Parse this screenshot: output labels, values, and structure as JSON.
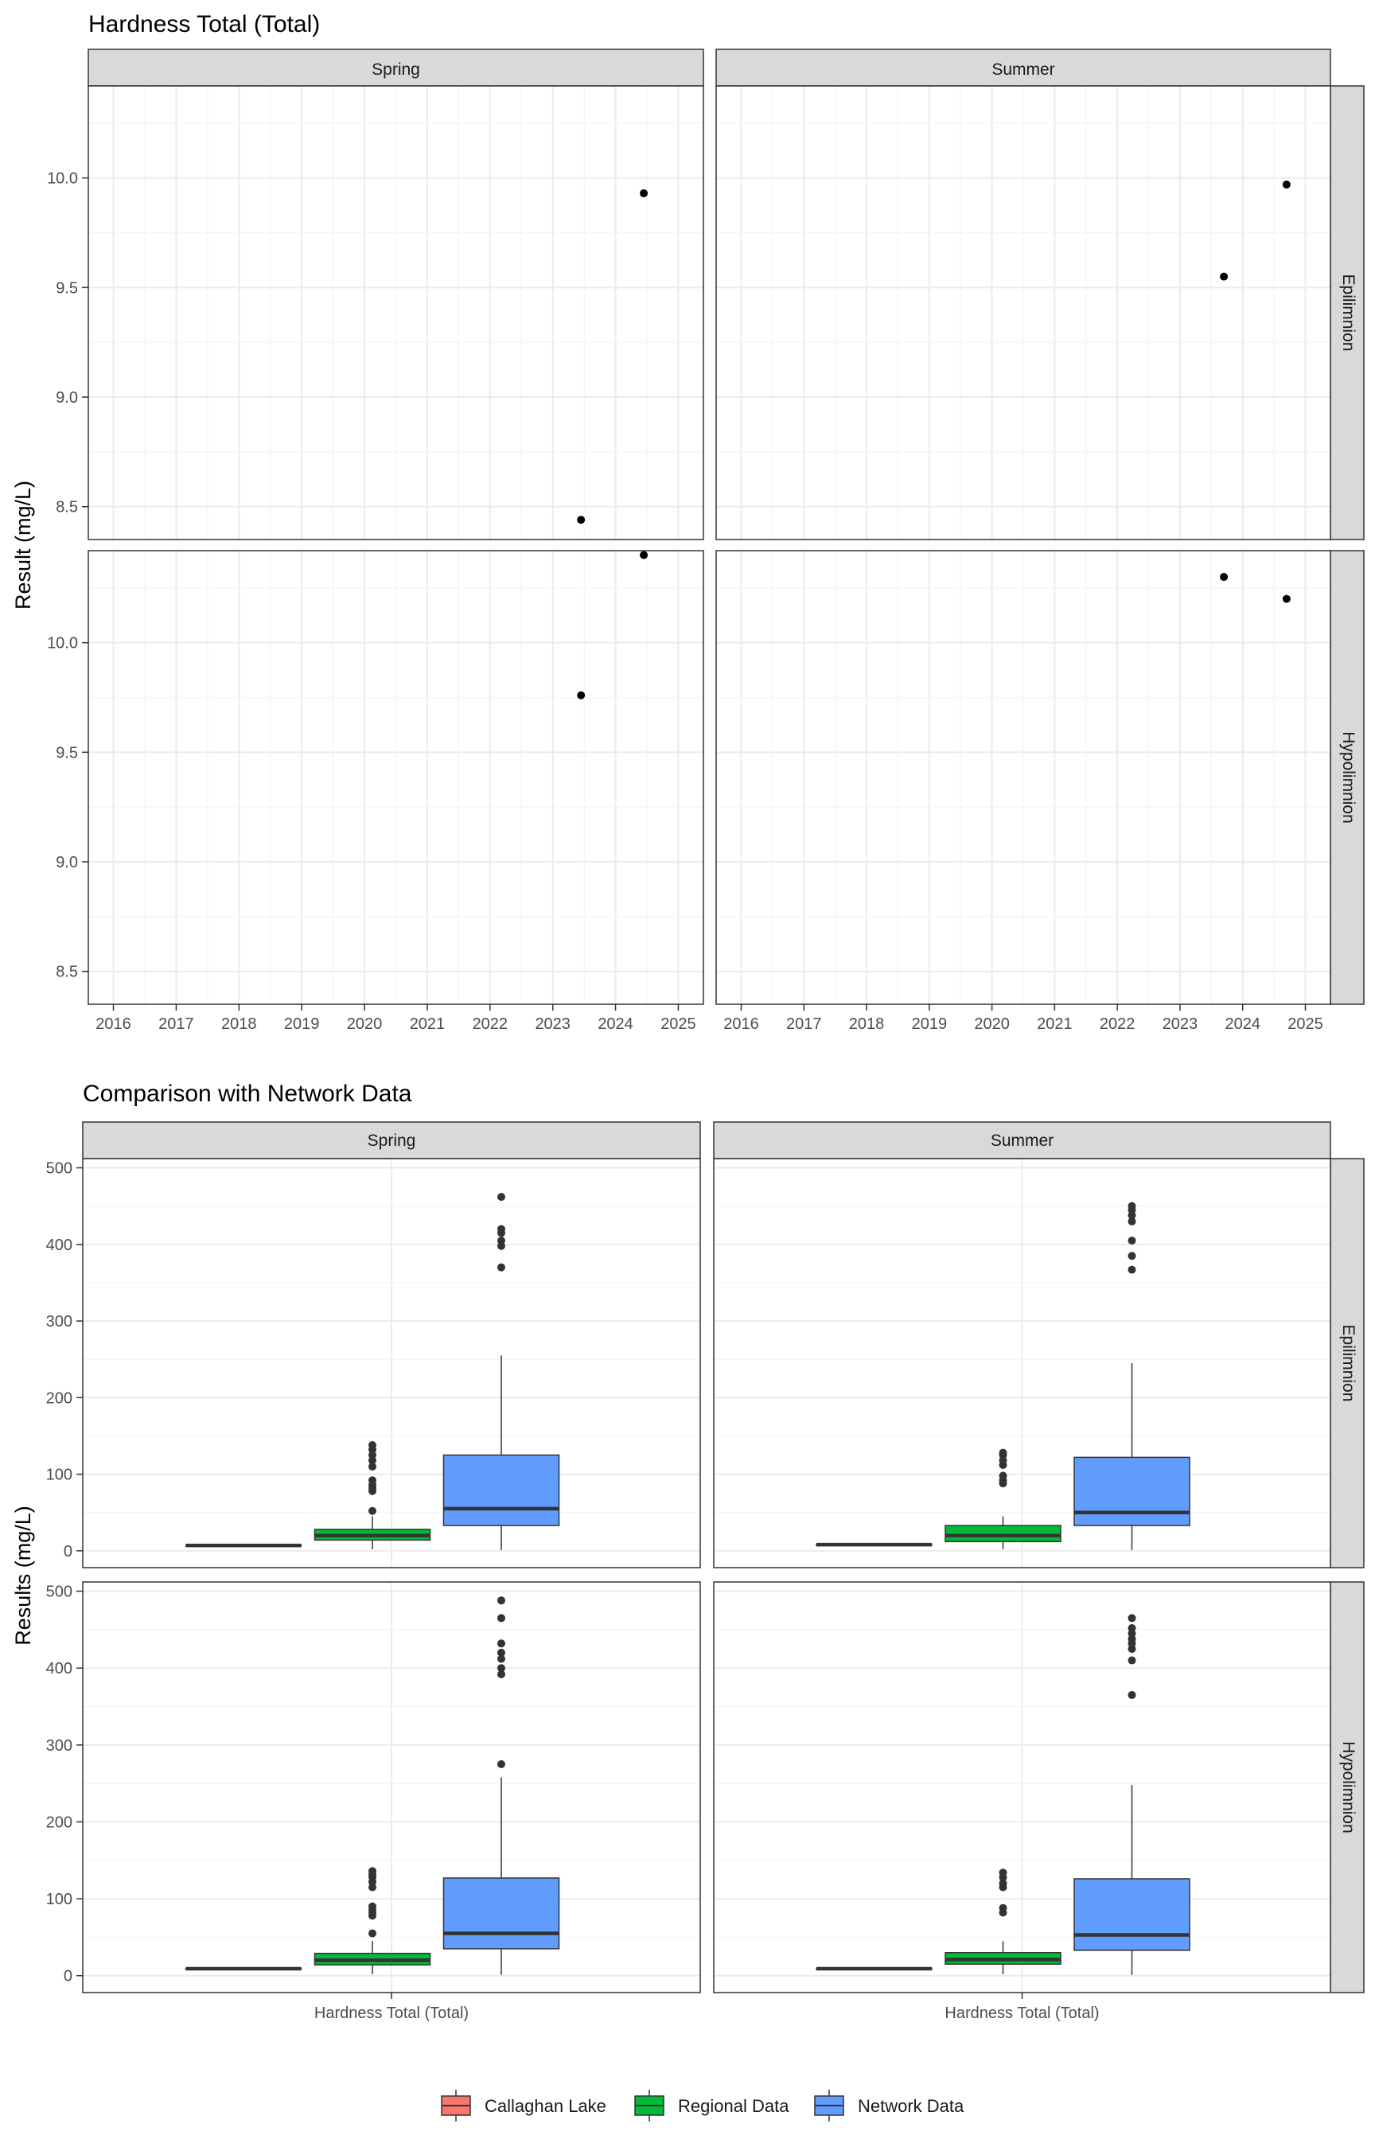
{
  "chart_data": [
    {
      "type": "scatter",
      "title": "Hardness Total (Total)",
      "ylabel": "Result (mg/L)",
      "facet_cols": [
        "Spring",
        "Summer"
      ],
      "facet_rows": [
        "Epilimnion",
        "Hypolimnion"
      ],
      "x_ticks": [
        "2016",
        "2017",
        "2018",
        "2019",
        "2020",
        "2021",
        "2022",
        "2023",
        "2024",
        "2025"
      ],
      "xlim": [
        2015.6,
        2025.4
      ],
      "y_ticks": [
        "8.5",
        "9.0",
        "9.5",
        "10.0"
      ],
      "ylim": [
        8.35,
        10.42
      ],
      "grid": true,
      "point_color": "#000000",
      "panels": [
        {
          "col": "Spring",
          "row": "Epilimnion",
          "points": [
            {
              "x": 2023.45,
              "y": 8.44
            },
            {
              "x": 2024.45,
              "y": 9.93
            }
          ]
        },
        {
          "col": "Summer",
          "row": "Epilimnion",
          "points": [
            {
              "x": 2023.7,
              "y": 9.55
            },
            {
              "x": 2024.7,
              "y": 9.97
            }
          ]
        },
        {
          "col": "Spring",
          "row": "Hypolimnion",
          "points": [
            {
              "x": 2023.45,
              "y": 9.76
            },
            {
              "x": 2024.45,
              "y": 10.4
            }
          ]
        },
        {
          "col": "Summer",
          "row": "Hypolimnion",
          "points": [
            {
              "x": 2023.7,
              "y": 10.3
            },
            {
              "x": 2024.7,
              "y": 10.2
            }
          ]
        }
      ]
    },
    {
      "type": "box",
      "title": "Comparison with Network Data",
      "ylabel": "Results (mg/L)",
      "xlabel_category": "Hardness Total (Total)",
      "facet_cols": [
        "Spring",
        "Summer"
      ],
      "facet_rows": [
        "Epilimnion",
        "Hypolimnion"
      ],
      "y_ticks": [
        "0",
        "100",
        "200",
        "300",
        "400",
        "500"
      ],
      "ylim": [
        -22,
        512
      ],
      "grid": true,
      "legend_position": "bottom",
      "groups": [
        {
          "name": "Callaghan Lake",
          "color": "#F8766D"
        },
        {
          "name": "Regional Data",
          "color": "#00BA38"
        },
        {
          "name": "Network Data",
          "color": "#619CFF"
        }
      ],
      "panels": [
        {
          "col": "Spring",
          "row": "Epilimnion",
          "boxes": [
            {
              "group": "Callaghan Lake",
              "min": 7,
              "q1": 7,
              "median": 7,
              "q3": 7,
              "max": 7,
              "outliers": []
            },
            {
              "group": "Regional Data",
              "min": 2,
              "q1": 14,
              "median": 20,
              "q3": 28,
              "max": 45,
              "outliers": [
                52,
                78,
                82,
                86,
                92,
                110,
                118,
                125,
                132,
                138
              ]
            },
            {
              "group": "Network Data",
              "min": 1,
              "q1": 33,
              "median": 55,
              "q3": 125,
              "max": 255,
              "outliers": [
                370,
                398,
                405,
                415,
                420,
                462
              ]
            }
          ]
        },
        {
          "col": "Summer",
          "row": "Epilimnion",
          "boxes": [
            {
              "group": "Callaghan Lake",
              "min": 8,
              "q1": 8,
              "median": 8,
              "q3": 8,
              "max": 8,
              "outliers": []
            },
            {
              "group": "Regional Data",
              "min": 2,
              "q1": 12,
              "median": 20,
              "q3": 33,
              "max": 45,
              "outliers": [
                88,
                92,
                98,
                112,
                118,
                125,
                128
              ]
            },
            {
              "group": "Network Data",
              "min": 1,
              "q1": 33,
              "median": 50,
              "q3": 122,
              "max": 245,
              "outliers": [
                367,
                385,
                405,
                430,
                438,
                445,
                450
              ]
            }
          ]
        },
        {
          "col": "Spring",
          "row": "Hypolimnion",
          "boxes": [
            {
              "group": "Callaghan Lake",
              "min": 9,
              "q1": 9,
              "median": 9,
              "q3": 9,
              "max": 9,
              "outliers": []
            },
            {
              "group": "Regional Data",
              "min": 2,
              "q1": 14,
              "median": 20,
              "q3": 29,
              "max": 45,
              "outliers": [
                55,
                78,
                82,
                86,
                90,
                115,
                122,
                128,
                132,
                136
              ]
            },
            {
              "group": "Network Data",
              "min": 1,
              "q1": 35,
              "median": 55,
              "q3": 127,
              "max": 258,
              "outliers": [
                275,
                392,
                400,
                412,
                420,
                432,
                465,
                488
              ]
            }
          ]
        },
        {
          "col": "Summer",
          "row": "Hypolimnion",
          "boxes": [
            {
              "group": "Callaghan Lake",
              "min": 9,
              "q1": 9,
              "median": 9,
              "q3": 9,
              "max": 9,
              "outliers": []
            },
            {
              "group": "Regional Data",
              "min": 2,
              "q1": 15,
              "median": 21,
              "q3": 30,
              "max": 45,
              "outliers": [
                82,
                88,
                115,
                120,
                128,
                134
              ]
            },
            {
              "group": "Network Data",
              "min": 1,
              "q1": 33,
              "median": 53,
              "q3": 126,
              "max": 248,
              "outliers": [
                365,
                410,
                425,
                432,
                438,
                445,
                452,
                465
              ]
            }
          ]
        }
      ]
    }
  ]
}
